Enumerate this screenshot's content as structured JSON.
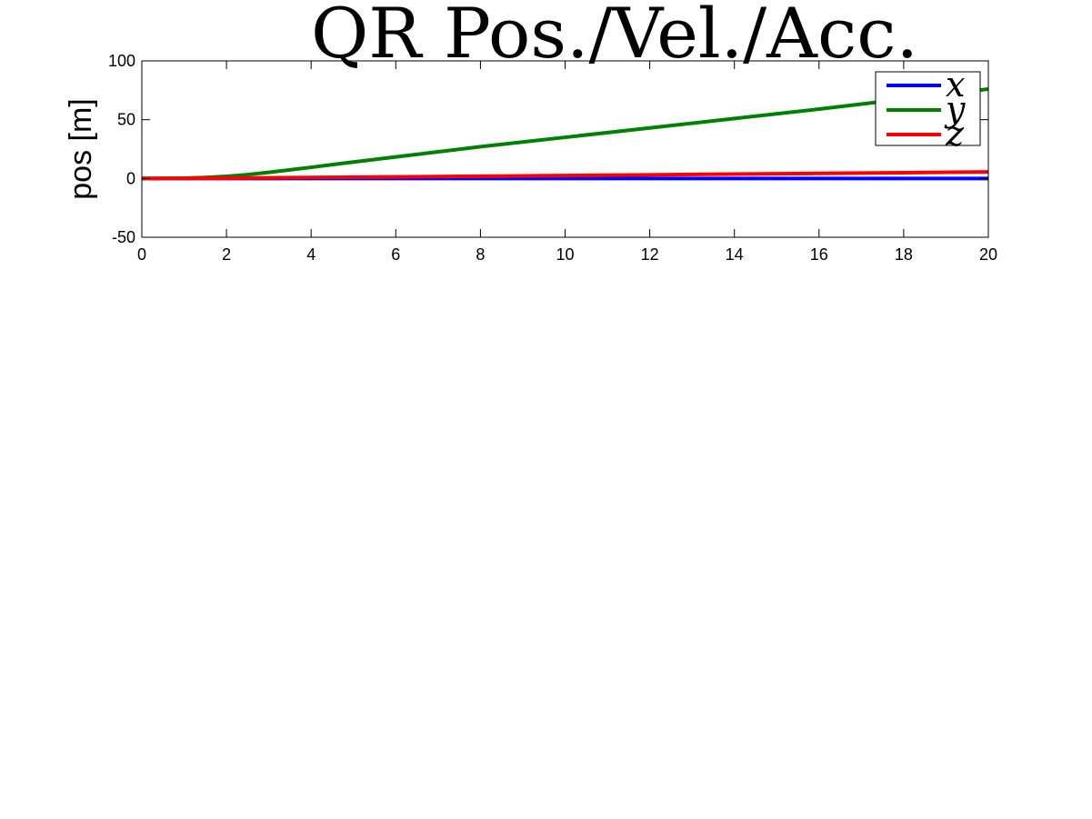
{
  "chart_data": {
    "type": "line",
    "title": "QR Pos./Vel./Acc.",
    "xlabel": "",
    "ylabel": "pos [m]",
    "xlim": [
      0,
      20
    ],
    "ylim": [
      -50,
      100
    ],
    "xticks": [
      0,
      2,
      4,
      6,
      8,
      10,
      12,
      14,
      16,
      18,
      20
    ],
    "yticks": [
      -50,
      0,
      50,
      100
    ],
    "grid": false,
    "legend_position": "top-right",
    "series": [
      {
        "name": "x",
        "color": "#0000ff",
        "x": [
          0,
          2,
          4,
          6,
          8,
          10,
          12,
          14,
          16,
          18,
          20
        ],
        "values": [
          0,
          0,
          0,
          0,
          0,
          0,
          0,
          0,
          0,
          0,
          0
        ]
      },
      {
        "name": "y",
        "color": "#008000",
        "x": [
          0,
          1,
          1.5,
          2,
          2.5,
          3,
          3.5,
          4,
          5,
          6,
          8,
          10,
          12,
          14,
          16,
          18,
          20
        ],
        "values": [
          0,
          0.3,
          0.8,
          1.8,
          3.3,
          5.2,
          7.3,
          9.5,
          14,
          18.3,
          27,
          35,
          43,
          51,
          59,
          67.5,
          76
        ]
      },
      {
        "name": "z",
        "color": "#ff0000",
        "x": [
          0,
          2,
          4,
          6,
          8,
          10,
          12,
          14,
          16,
          18,
          20
        ],
        "values": [
          0,
          0.3,
          0.8,
          1.3,
          1.9,
          2.5,
          3.1,
          3.7,
          4.3,
          4.9,
          5.6
        ]
      }
    ]
  }
}
